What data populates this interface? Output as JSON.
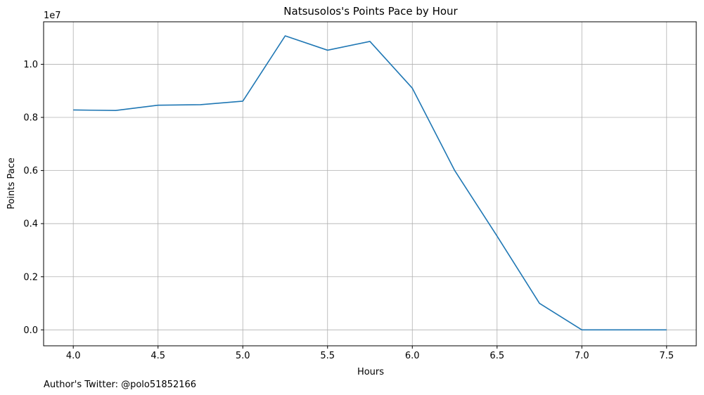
{
  "chart_data": {
    "type": "line",
    "title": "Natsusolos's Points Pace by Hour",
    "xlabel": "Hours",
    "ylabel": "Points Pace",
    "y_offset_label": "1e7",
    "footer": "Author's Twitter: @polo51852166",
    "grid": true,
    "xlim": [
      3.825,
      7.675
    ],
    "ylim": [
      -600000,
      11600000
    ],
    "x_ticks": [
      4.0,
      4.5,
      5.0,
      5.5,
      6.0,
      6.5,
      7.0,
      7.5
    ],
    "x_tick_labels": [
      "4.0",
      "4.5",
      "5.0",
      "5.5",
      "6.0",
      "6.5",
      "7.0",
      "7.5"
    ],
    "y_ticks": [
      0,
      2000000,
      4000000,
      6000000,
      8000000,
      10000000
    ],
    "y_tick_labels": [
      "0.0",
      "0.2",
      "0.4",
      "0.6",
      "0.8",
      "1.0"
    ],
    "series": [
      {
        "color": "#1f77b4",
        "x": [
          4.0,
          4.25,
          4.5,
          4.75,
          5.0,
          5.25,
          5.5,
          5.75,
          6.0,
          6.25,
          6.5,
          6.75,
          7.0,
          7.25,
          7.5
        ],
        "y": [
          8280000,
          8260000,
          8460000,
          8480000,
          8610000,
          11070000,
          10530000,
          10860000,
          9100000,
          6000000,
          3530000,
          1000000,
          0,
          0,
          0
        ]
      }
    ]
  }
}
